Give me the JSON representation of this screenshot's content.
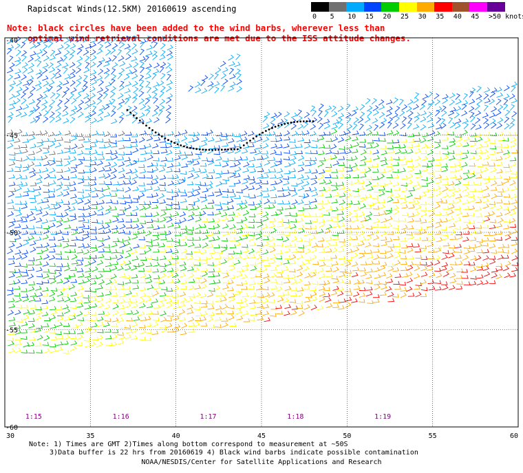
{
  "title": "Rapidscat Winds(12.5KM) 20160619 ascending",
  "note_lines": [
    "Note: black circles have been added to the wind barbs, wherever less than",
    "    optimal wind retrieval conditions are met due to the ISS attitude changes."
  ],
  "legend": {
    "labels": [
      "0",
      "5",
      "10",
      "15",
      "20",
      "25",
      "30",
      "35",
      "40",
      "45",
      ">50 knots"
    ],
    "colors": [
      "#000000",
      "#707070",
      "#00aaff",
      "#0044ff",
      "#00cc00",
      "#ffff00",
      "#ffaa00",
      "#ff0000",
      "#a0522d",
      "#ff00ff",
      "#660099"
    ]
  },
  "axes": {
    "lat_labels": [
      "-40",
      "-45",
      "-50",
      "-55",
      "-60"
    ],
    "lon_labels": [
      "30",
      "35",
      "40",
      "45",
      "50",
      "55",
      "60"
    ],
    "lon_range": [
      30,
      60
    ],
    "lat_range": [
      -40,
      -60
    ]
  },
  "time_labels": [
    "1:15",
    "1:16",
    "1:17",
    "1:18",
    "1:19"
  ],
  "footer_lines": [
    "Note: 1) Times are GMT 2)Times along bottom correspond to measurement at ~50S",
    "  3)Data buffer is 22 hrs from 20160619 4) Black wind barbs indicate possible contamination",
    "NOAA/NESDIS/Center for Satellite Applications and Research"
  ]
}
